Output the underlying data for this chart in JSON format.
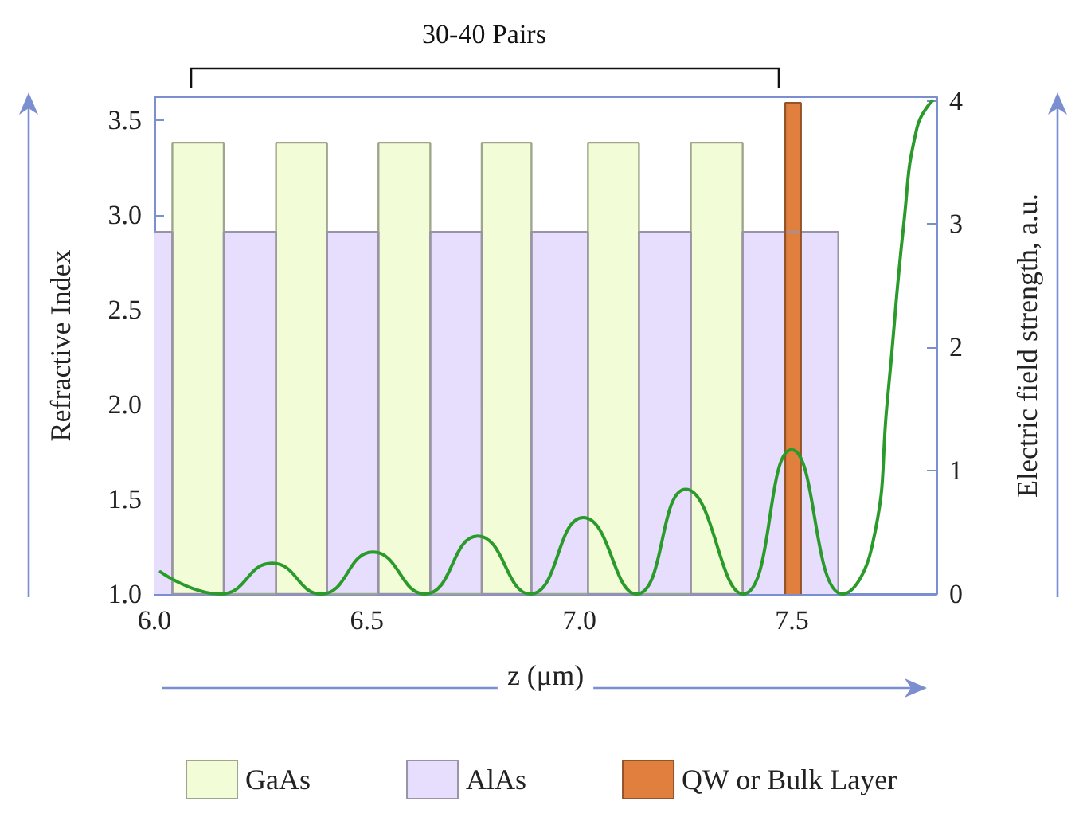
{
  "chart_data": {
    "type": "area",
    "xlabel": "z (μm)",
    "ylabel": "Refractive Index",
    "y2label": "Electric field strength, a.u.",
    "annotations": [
      "30-40 Pairs"
    ],
    "xlim": [
      6.0,
      7.84
    ],
    "xticks": [
      {
        "value": 6.0,
        "label": "6.0"
      },
      {
        "value": 6.5,
        "label": "6.5"
      },
      {
        "value": 7.0,
        "label": "7.0"
      },
      {
        "value": 7.5,
        "label": "7.5"
      }
    ],
    "ylim": [
      1.0,
      3.62
    ],
    "yticks": [
      {
        "value": 1.0,
        "label": "1.0"
      },
      {
        "value": 1.5,
        "label": "1.5"
      },
      {
        "value": 2.0,
        "label": "2.0"
      },
      {
        "value": 2.5,
        "label": "2.5"
      },
      {
        "value": 3.0,
        "label": "3.0"
      },
      {
        "value": 3.5,
        "label": "3.5"
      }
    ],
    "y2lim": [
      0,
      4.03
    ],
    "y2ticks": [
      0,
      1,
      2,
      3,
      4
    ],
    "legend": "bottom",
    "grid": false,
    "marker": "none",
    "series": [
      {
        "name": "GaAs",
        "color": "#f2fcd6",
        "x": [
          6.042,
          6.042,
          6.163,
          6.163,
          6.286,
          6.286,
          6.406,
          6.406,
          6.527,
          6.527,
          6.649,
          6.649,
          6.77,
          6.77,
          6.887,
          6.887,
          7.02,
          7.02,
          7.14,
          7.14,
          7.262,
          7.262,
          7.384,
          7.384
        ],
        "values": [
          1.0,
          3.38,
          3.38,
          1.0,
          1.0,
          3.38,
          3.38,
          1.0,
          1.0,
          3.38,
          3.38,
          1.0,
          1.0,
          3.38,
          3.38,
          1.0,
          1.0,
          3.38,
          3.38,
          1.0,
          1.0,
          3.38,
          3.38,
          1.0
        ]
      },
      {
        "name": "AlAs",
        "color": "#e6defc",
        "x": [
          6.0,
          6.042,
          6.042,
          6.163,
          6.163,
          6.286,
          6.286,
          6.406,
          6.406,
          6.527,
          6.527,
          6.649,
          6.649,
          6.77,
          6.77,
          6.887,
          6.887,
          7.02,
          7.02,
          7.14,
          7.14,
          7.262,
          7.262,
          7.384,
          7.384,
          7.609,
          7.609
        ],
        "values": [
          2.91,
          2.91,
          1.0,
          1.0,
          2.91,
          2.91,
          1.0,
          1.0,
          2.91,
          2.91,
          1.0,
          1.0,
          2.91,
          2.91,
          1.0,
          1.0,
          2.91,
          2.91,
          1.0,
          1.0,
          2.91,
          2.91,
          1.0,
          1.0,
          2.91,
          2.91,
          1.0
        ]
      },
      {
        "name": "QW or Bulk Layer",
        "color": "#e07f3e",
        "x": [
          7.484,
          7.484,
          7.521,
          7.521
        ],
        "values": [
          1.0,
          3.59,
          3.59,
          1.0
        ]
      },
      {
        "type": "line",
        "axis": "y2",
        "color": "#2a9a2a",
        "line_style": "solid",
        "x": [
          6.014,
          6.155,
          6.277,
          6.392,
          6.514,
          6.636,
          6.761,
          6.884,
          7.009,
          7.134,
          7.25,
          7.385,
          7.499,
          7.619,
          7.688,
          7.725,
          7.763,
          7.794,
          7.83
        ],
        "values": [
          0.18,
          0,
          0.25,
          0,
          0.34,
          0,
          0.47,
          0,
          0.62,
          0,
          0.85,
          0,
          1.17,
          0,
          0.38,
          1.59,
          3.0,
          3.78,
          4.0
        ]
      }
    ]
  }
}
